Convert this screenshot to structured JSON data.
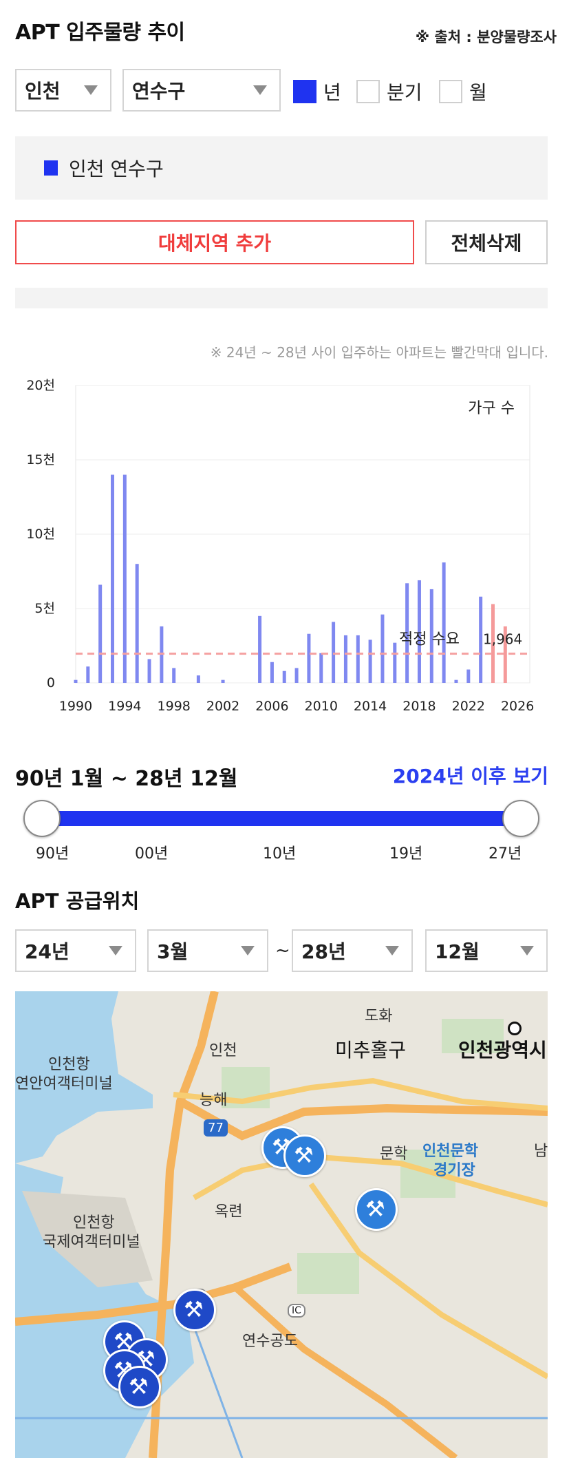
{
  "header": {
    "title": "APT 입주물량 추이",
    "source": "※ 출처 : 분양물량조사"
  },
  "filters": {
    "region": "인천",
    "district": "연수구",
    "period_options": [
      {
        "label": "년",
        "checked": true
      },
      {
        "label": "분기",
        "checked": false
      },
      {
        "label": "월",
        "checked": false
      }
    ]
  },
  "legend": {
    "item": "인천 연수구",
    "color": "#1f33f0"
  },
  "actions": {
    "add_region": "대체지역 추가",
    "delete_all": "전체삭제"
  },
  "chart_note": "※ 24년 ~ 28년 사이 입주하는 아파트는 빨간막대 입니다.",
  "chart_data": {
    "type": "bar",
    "ylabel": "가구 수",
    "ylim": [
      0,
      20000
    ],
    "yticks": [
      {
        "value": 0,
        "label": "0"
      },
      {
        "value": 5000,
        "label": "5천"
      },
      {
        "value": 10000,
        "label": "10천"
      },
      {
        "value": 15000,
        "label": "15천"
      },
      {
        "value": 20000,
        "label": "20천"
      }
    ],
    "xlim": [
      1990,
      2027
    ],
    "xticks": [
      "1990",
      "1994",
      "1998",
      "2002",
      "2006",
      "2010",
      "2014",
      "2018",
      "2022",
      "2026"
    ],
    "years": [
      1990,
      1991,
      1992,
      1993,
      1994,
      1995,
      1996,
      1997,
      1998,
      2000,
      2002,
      2005,
      2006,
      2007,
      2008,
      2009,
      2010,
      2011,
      2012,
      2013,
      2014,
      2015,
      2016,
      2017,
      2018,
      2019,
      2020,
      2021,
      2022,
      2023,
      2024,
      2025
    ],
    "values": [
      200,
      1100,
      6600,
      14000,
      14000,
      8000,
      1600,
      3800,
      1000,
      500,
      200,
      4500,
      1400,
      800,
      1000,
      3300,
      2000,
      4100,
      3200,
      3200,
      2900,
      4600,
      2700,
      6700,
      6900,
      6300,
      8100,
      200,
      900,
      5800,
      5300,
      3800
    ],
    "colors": {
      "past": "#7f88f0",
      "future": "#f59a9a"
    },
    "reference": {
      "label": "적정 수요",
      "value": 1964,
      "value_label": "1,964",
      "color": "#f5a0a0"
    }
  },
  "range": {
    "label": "90년 1월 ~ 28년 12월",
    "after_link": "2024년 이후 보기",
    "ticks": [
      "90년",
      "00년",
      "10년",
      "19년",
      "27년"
    ]
  },
  "supply": {
    "title": "APT 공급위치",
    "from_year": "24년",
    "from_month": "3월",
    "to_year": "28년",
    "to_month": "12월",
    "tilde": "~"
  },
  "map": {
    "labels": {
      "dohwa": "도화",
      "michuhol": "미추홀구",
      "incheon_metro": "인천광역시",
      "incheon_port": "인천항",
      "coastal_terminal": "연안여객터미널",
      "ic_incheon": "인천",
      "ic_neunghae": "능해",
      "route_77": "77",
      "munhak": "문학",
      "stadium_1": "인천문학",
      "stadium_2": "경기장",
      "okryeon": "옥련",
      "intl_port": "인천항",
      "intl_terminal": "국제여객터미널",
      "jc": "JC",
      "ic": "IC",
      "yeonsu_park": "연수공도",
      "edge": "남"
    }
  }
}
